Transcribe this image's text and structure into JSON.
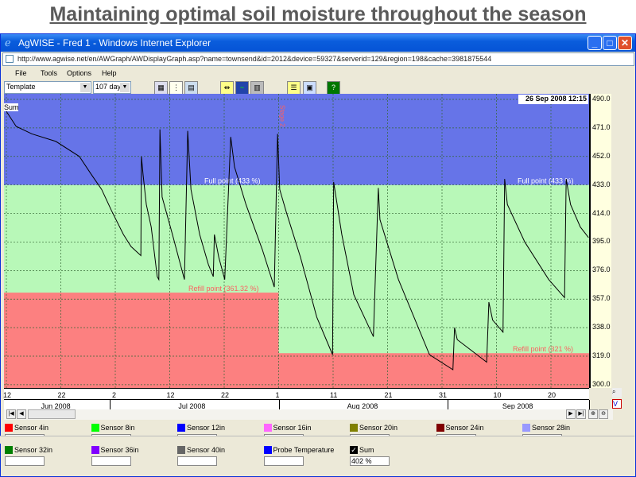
{
  "slide": {
    "title": "Maintaining optimal soil moisture throughout the season"
  },
  "window": {
    "title": "AgWISE - Fred 1 - Windows Internet Explorer",
    "address": "http://www.agwise.net/en/AWGraph/AWDisplayGraph.asp?name=townsend&id=2012&device=59327&serverid=129&region=198&cache=3981875544"
  },
  "menu": [
    "File",
    "Tools",
    "Options",
    "Help"
  ],
  "toolbar": {
    "template": "Template",
    "range": "107 day"
  },
  "chart_data": {
    "type": "line",
    "title": "",
    "timestamp": "26 Sep 2008 12:15",
    "ylim": [
      300,
      490
    ],
    "yticks": [
      "490.0",
      "471.0",
      "452.0",
      "433.0",
      "414.0",
      "395.0",
      "376.0",
      "357.0",
      "338.0",
      "319.0",
      "300.0"
    ],
    "x_day_range": [
      0,
      107
    ],
    "xticks": [
      {
        "day": 0,
        "label": "12"
      },
      {
        "day": 10,
        "label": "22"
      },
      {
        "day": 20,
        "label": "2"
      },
      {
        "day": 30,
        "label": "12"
      },
      {
        "day": 40,
        "label": "22"
      },
      {
        "day": 50,
        "label": "1"
      },
      {
        "day": 60,
        "label": "11"
      },
      {
        "day": 70,
        "label": "21"
      },
      {
        "day": 80,
        "label": "31"
      },
      {
        "day": 90,
        "label": "10"
      },
      {
        "day": 100,
        "label": "20"
      }
    ],
    "months": [
      {
        "label": "Jun 2008",
        "start": -1,
        "end": 19
      },
      {
        "label": "Jul 2008",
        "start": 19,
        "end": 50
      },
      {
        "label": "Aug 2008",
        "start": 50,
        "end": 81
      },
      {
        "label": "Sep 2008",
        "start": 81,
        "end": 107
      }
    ],
    "zones": {
      "full_point": 433,
      "refill_before": 361.32,
      "refill_after": 321,
      "stage_change_day": 50,
      "colors": {
        "full": "#6674e8",
        "ok": "#b8f8b8",
        "refill": "#fc8080"
      }
    },
    "annotations": {
      "full_label": "Full point (433 %)",
      "refill1_label": "Refill point (361.32 %)",
      "refill2_label": "Refill point (321 %)",
      "stage_label": "Stage 2",
      "series_label": "Sum"
    },
    "series": [
      {
        "name": "Sum",
        "color": "#000000",
        "points": [
          [
            0,
            482
          ],
          [
            1.8,
            472
          ],
          [
            4.7,
            467
          ],
          [
            9.1,
            462
          ],
          [
            13.4,
            452
          ],
          [
            15.6,
            440
          ],
          [
            17.5,
            430
          ],
          [
            19.3,
            416
          ],
          [
            21.5,
            400
          ],
          [
            22.9,
            392
          ],
          [
            24.7,
            386
          ],
          [
            24.8,
            452
          ],
          [
            25.1,
            440
          ],
          [
            25.7,
            420
          ],
          [
            26.6,
            405
          ],
          [
            27.7,
            372
          ],
          [
            28.0,
            370
          ],
          [
            28.2,
            470
          ],
          [
            28.6,
            425
          ],
          [
            30.5,
            400
          ],
          [
            32.7,
            370
          ],
          [
            33.3,
            469
          ],
          [
            33.9,
            430
          ],
          [
            35.5,
            400
          ],
          [
            37.1,
            380
          ],
          [
            38.0,
            372
          ],
          [
            38.2,
            400
          ],
          [
            39,
            385
          ],
          [
            40.1,
            370
          ],
          [
            41.2,
            465
          ],
          [
            41.9,
            445
          ],
          [
            44,
            420
          ],
          [
            47,
            390
          ],
          [
            49.2,
            365
          ],
          [
            49.8,
            467
          ],
          [
            50.2,
            430
          ],
          [
            51.4,
            415
          ],
          [
            54,
            385
          ],
          [
            57,
            345
          ],
          [
            59.9,
            320
          ],
          [
            60.1,
            435
          ],
          [
            61.6,
            400
          ],
          [
            63.8,
            360
          ],
          [
            67.4,
            332
          ],
          [
            68.3,
            431
          ],
          [
            68.6,
            410
          ],
          [
            72,
            370
          ],
          [
            77.7,
            320
          ],
          [
            82.0,
            310
          ],
          [
            82.3,
            338
          ],
          [
            82.8,
            330
          ],
          [
            88.2,
            315
          ],
          [
            88.6,
            355
          ],
          [
            89.3,
            343
          ],
          [
            91.2,
            335
          ],
          [
            91.5,
            437
          ],
          [
            92,
            420
          ],
          [
            95.2,
            395
          ],
          [
            99.6,
            370
          ],
          [
            102.5,
            358
          ],
          [
            102.8,
            437
          ],
          [
            103.6,
            420
          ],
          [
            105.4,
            405
          ],
          [
            106.9,
            398
          ]
        ]
      }
    ]
  },
  "legend": [
    {
      "label": "Sensor 4in",
      "color": "#ff0000",
      "value": ""
    },
    {
      "label": "Sensor 8in",
      "color": "#00ff00",
      "value": ""
    },
    {
      "label": "Sensor 12in",
      "color": "#0000ff",
      "value": ""
    },
    {
      "label": "Sensor 16in",
      "color": "#ff66ff",
      "value": ""
    },
    {
      "label": "Sensor 20in",
      "color": "#808000",
      "value": ""
    },
    {
      "label": "Sensor 24in",
      "color": "#800000",
      "value": ""
    },
    {
      "label": "Sensor 28in",
      "color": "#9999ff",
      "value": ""
    },
    {
      "label": "Sensor 32in",
      "color": "#008000",
      "value": ""
    },
    {
      "label": "Sensor 36in",
      "color": "#8000ff",
      "value": ""
    },
    {
      "label": "Sensor 40in",
      "color": "#666666",
      "value": ""
    },
    {
      "label": "Probe Temperature",
      "color": "#0000ff",
      "value": ""
    },
    {
      "label": "Sum",
      "color": "checkbox",
      "value": "402 %"
    }
  ]
}
